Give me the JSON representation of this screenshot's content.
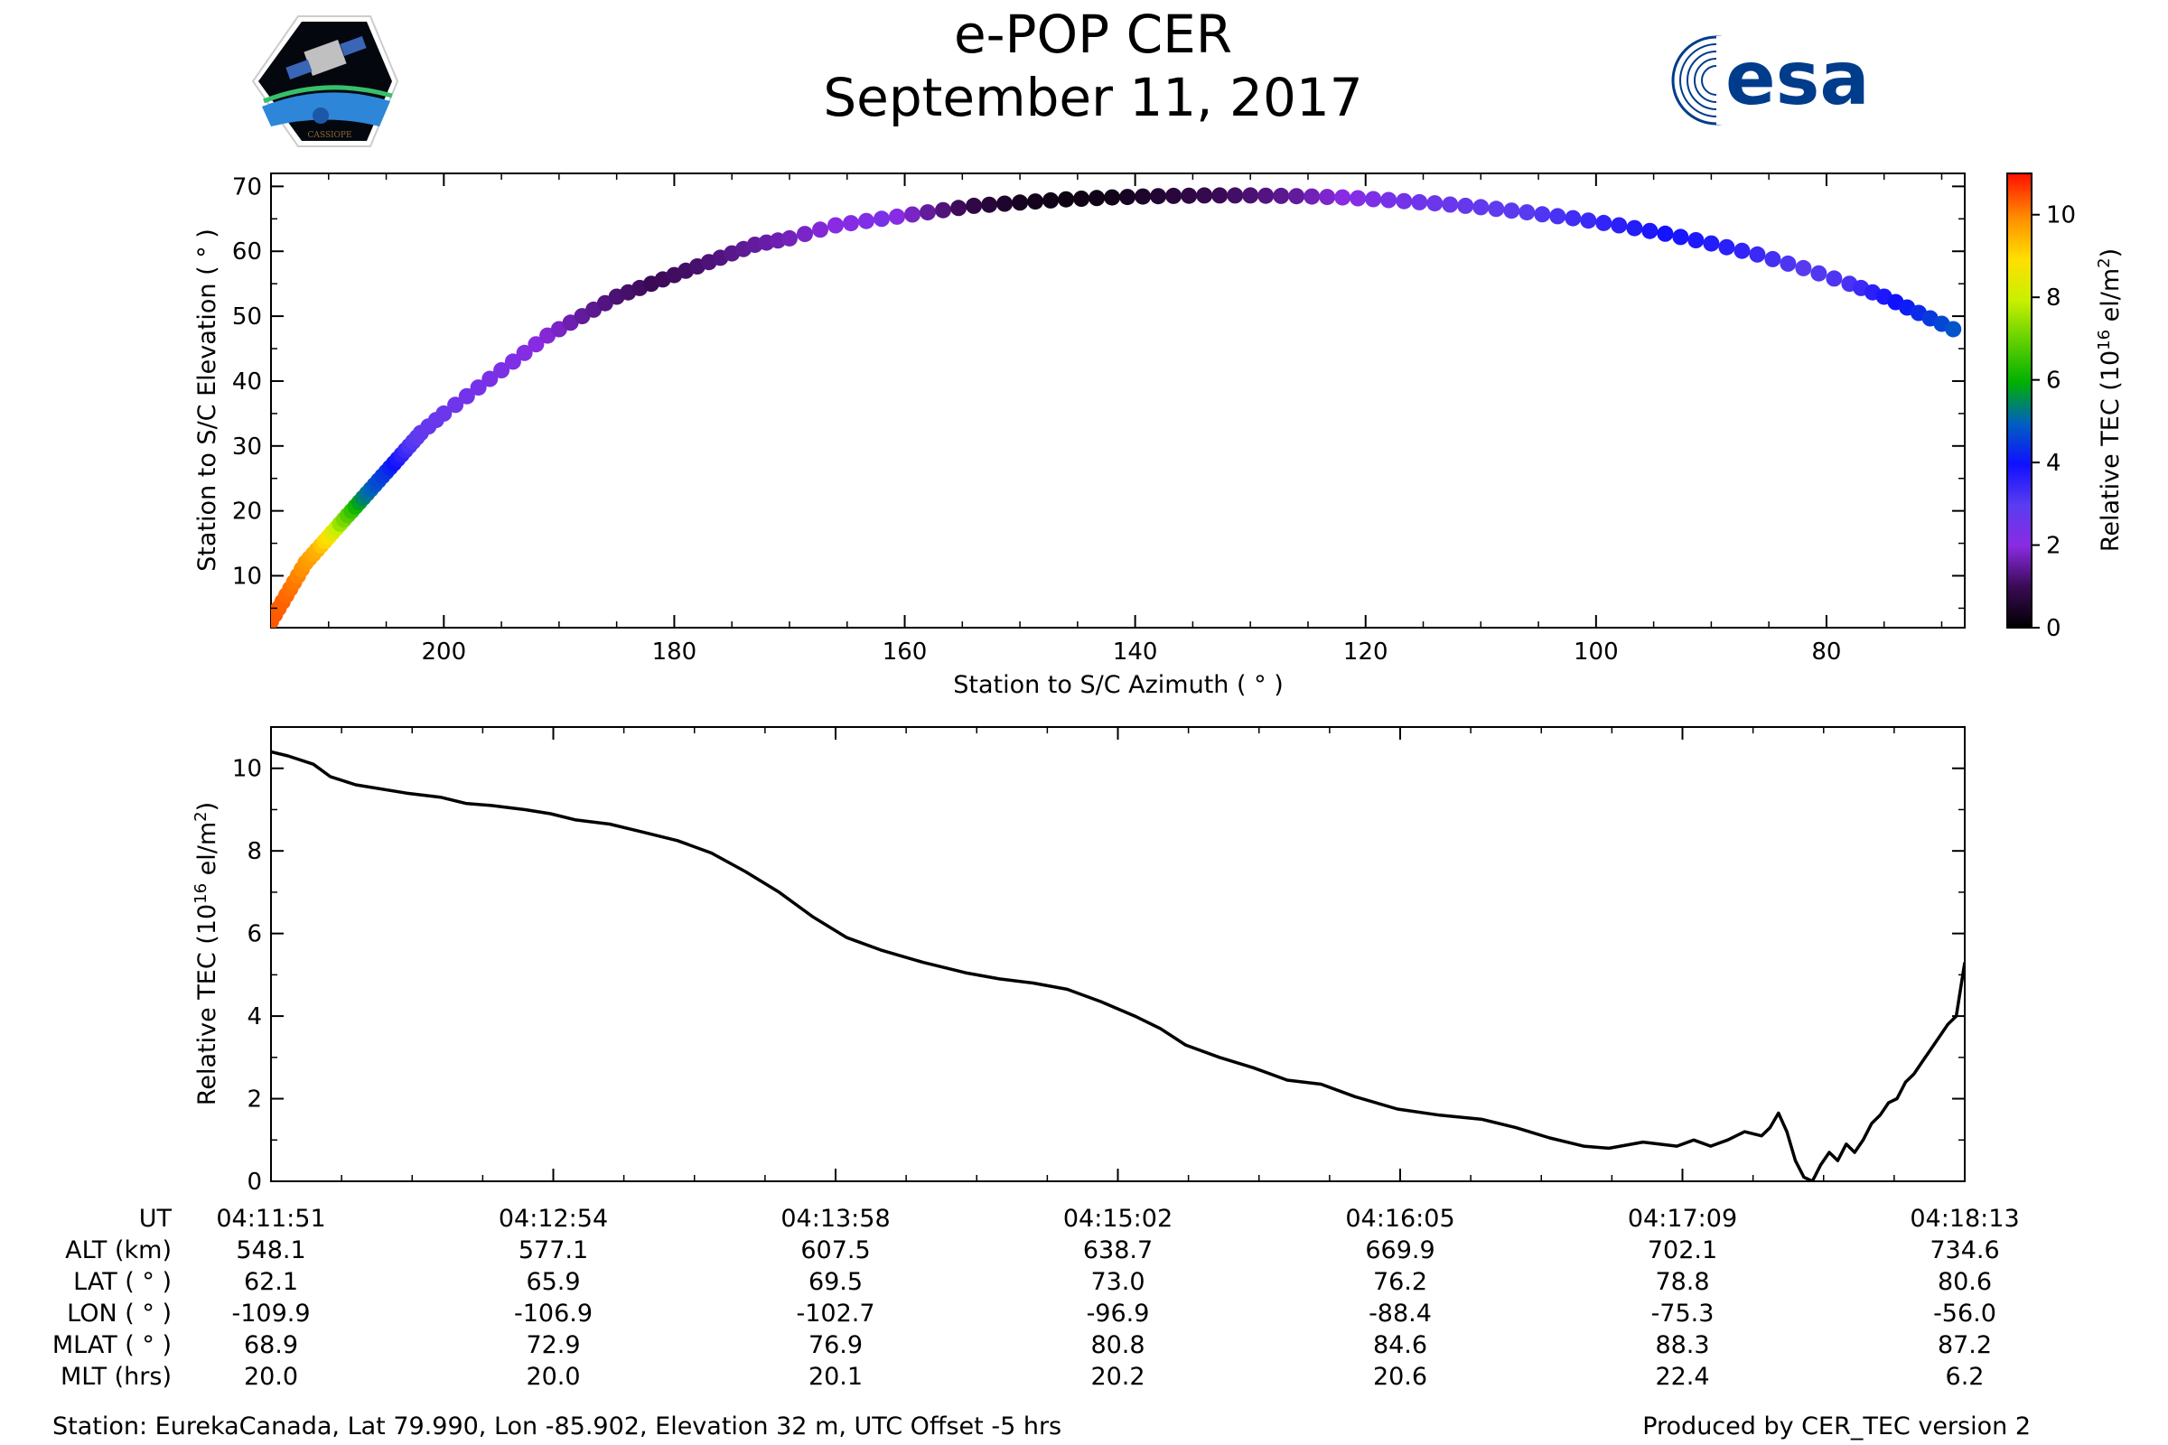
{
  "header": {
    "title": "e-POP CER",
    "date": "September 11, 2017",
    "left_logo_text": "CASSIOPE",
    "right_logo_text": "esa"
  },
  "colors": {
    "esa_blue": "#003c8c",
    "line": "#000000"
  },
  "chart_data": [
    {
      "type": "scatter",
      "title": "",
      "xlabel": "Station to S/C Azimuth ( ° )",
      "ylabel": "Station to S/C Elevation ( ° )",
      "xlim": [
        215,
        68
      ],
      "ylim": [
        2,
        72
      ],
      "xticks": [
        200,
        180,
        160,
        140,
        120,
        100,
        80
      ],
      "yticks": [
        10,
        20,
        30,
        40,
        50,
        60,
        70
      ],
      "points": [
        [
          215,
          3,
          10.4
        ],
        [
          214,
          6,
          10.3
        ],
        [
          213,
          9,
          10.1
        ],
        [
          212,
          12,
          9.8
        ],
        [
          211,
          14,
          9.5
        ],
        [
          210,
          16,
          8.8
        ],
        [
          209,
          18,
          7.5
        ],
        [
          208,
          20,
          6.5
        ],
        [
          207,
          22,
          5.4
        ],
        [
          206,
          24,
          4.8
        ],
        [
          205,
          26,
          4.4
        ],
        [
          204,
          28,
          3.8
        ],
        [
          203,
          30,
          3.2
        ],
        [
          202,
          32,
          2.8
        ],
        [
          200,
          35,
          2.6
        ],
        [
          197,
          39,
          2.4
        ],
        [
          194,
          43,
          2.2
        ],
        [
          191,
          47,
          1.9
        ],
        [
          188,
          50,
          1.5
        ],
        [
          185,
          53,
          1.2
        ],
        [
          182,
          55,
          1.0
        ],
        [
          179,
          57,
          1.1
        ],
        [
          176,
          59,
          1.3
        ],
        [
          173,
          61,
          1.5
        ],
        [
          170,
          62,
          1.7
        ],
        [
          166,
          64,
          2.0
        ],
        [
          162,
          65,
          2.3
        ],
        [
          158,
          66,
          1.5
        ],
        [
          154,
          67,
          0.8
        ],
        [
          150,
          67.5,
          0.4
        ],
        [
          146,
          68,
          0.2
        ],
        [
          142,
          68.3,
          0.3
        ],
        [
          138,
          68.5,
          0.6
        ],
        [
          134,
          68.6,
          0.9
        ],
        [
          130,
          68.6,
          1.2
        ],
        [
          126,
          68.5,
          1.5
        ],
        [
          122,
          68.3,
          2.0
        ],
        [
          118,
          67.9,
          2.4
        ],
        [
          114,
          67.4,
          2.6
        ],
        [
          110,
          66.8,
          2.8
        ],
        [
          106,
          66.0,
          3.0
        ],
        [
          102,
          65.1,
          3.3
        ],
        [
          98,
          64.0,
          3.6
        ],
        [
          94,
          62.7,
          3.9
        ],
        [
          90,
          61.2,
          3.7
        ],
        [
          86,
          59.5,
          3.4
        ],
        [
          82,
          57.4,
          3.0
        ],
        [
          78,
          55.0,
          3.2
        ],
        [
          75,
          53.0,
          3.8
        ],
        [
          72,
          50.5,
          4.3
        ],
        [
          69,
          48,
          4.8
        ]
      ],
      "colorbar": {
        "label": "Relative TEC (10^16 el/m^2)",
        "label_main": "Relative TEC (10",
        "label_exp": "16",
        "label_unit": " el/m",
        "label_exp2": "2",
        "label_close": ")",
        "range": [
          0,
          11
        ],
        "ticks": [
          0,
          2,
          4,
          6,
          8,
          10
        ],
        "colormap": "gnuplot-like (black-purple-blue-green-yellow-orange-red)"
      }
    },
    {
      "type": "line",
      "title": "",
      "xlabel": "",
      "ylabel": "Relative TEC (10^16 el/m^2)",
      "xlim": [
        0,
        1
      ],
      "ylim": [
        0,
        11
      ],
      "yticks": [
        0,
        2,
        4,
        6,
        8,
        10
      ],
      "x_tick_labels": [
        "04:11:51",
        "04:12:54",
        "04:13:58",
        "04:15:02",
        "04:16:05",
        "04:17:09",
        "04:18:13"
      ],
      "series": [
        {
          "name": "Relative TEC",
          "points": [
            [
              0.0,
              10.4
            ],
            [
              0.01,
              10.3
            ],
            [
              0.025,
              10.1
            ],
            [
              0.035,
              9.8
            ],
            [
              0.05,
              9.6
            ],
            [
              0.08,
              9.4
            ],
            [
              0.1,
              9.3
            ],
            [
              0.115,
              9.15
            ],
            [
              0.13,
              9.1
            ],
            [
              0.15,
              9.0
            ],
            [
              0.165,
              8.9
            ],
            [
              0.18,
              8.75
            ],
            [
              0.2,
              8.65
            ],
            [
              0.22,
              8.45
            ],
            [
              0.24,
              8.25
            ],
            [
              0.26,
              7.95
            ],
            [
              0.28,
              7.5
            ],
            [
              0.3,
              7.0
            ],
            [
              0.32,
              6.4
            ],
            [
              0.34,
              5.9
            ],
            [
              0.36,
              5.6
            ],
            [
              0.385,
              5.3
            ],
            [
              0.41,
              5.05
            ],
            [
              0.43,
              4.9
            ],
            [
              0.45,
              4.8
            ],
            [
              0.47,
              4.65
            ],
            [
              0.49,
              4.35
            ],
            [
              0.51,
              4.0
            ],
            [
              0.525,
              3.7
            ],
            [
              0.54,
              3.3
            ],
            [
              0.56,
              3.0
            ],
            [
              0.58,
              2.75
            ],
            [
              0.6,
              2.45
            ],
            [
              0.62,
              2.35
            ],
            [
              0.64,
              2.05
            ],
            [
              0.665,
              1.75
            ],
            [
              0.69,
              1.6
            ],
            [
              0.715,
              1.5
            ],
            [
              0.735,
              1.3
            ],
            [
              0.755,
              1.05
            ],
            [
              0.775,
              0.85
            ],
            [
              0.79,
              0.8
            ],
            [
              0.81,
              0.95
            ],
            [
              0.83,
              0.85
            ],
            [
              0.84,
              1.0
            ],
            [
              0.85,
              0.85
            ],
            [
              0.86,
              1.0
            ],
            [
              0.87,
              1.2
            ],
            [
              0.88,
              1.1
            ],
            [
              0.885,
              1.3
            ],
            [
              0.89,
              1.65
            ],
            [
              0.895,
              1.2
            ],
            [
              0.9,
              0.5
            ],
            [
              0.905,
              0.1
            ],
            [
              0.91,
              0.0
            ],
            [
              0.915,
              0.4
            ],
            [
              0.92,
              0.7
            ],
            [
              0.925,
              0.5
            ],
            [
              0.93,
              0.9
            ],
            [
              0.935,
              0.7
            ],
            [
              0.94,
              1.0
            ],
            [
              0.945,
              1.4
            ],
            [
              0.95,
              1.6
            ],
            [
              0.955,
              1.9
            ],
            [
              0.96,
              2.0
            ],
            [
              0.965,
              2.4
            ],
            [
              0.97,
              2.6
            ],
            [
              0.975,
              2.9
            ],
            [
              0.98,
              3.2
            ],
            [
              0.985,
              3.5
            ],
            [
              0.99,
              3.8
            ],
            [
              0.995,
              4.0
            ],
            [
              1.0,
              5.3
            ]
          ]
        }
      ]
    }
  ],
  "table": {
    "rows": [
      {
        "label": "UT",
        "values": [
          "04:11:51",
          "04:12:54",
          "04:13:58",
          "04:15:02",
          "04:16:05",
          "04:17:09",
          "04:18:13"
        ]
      },
      {
        "label": "ALT (km)",
        "values": [
          "548.1",
          "577.1",
          "607.5",
          "638.7",
          "669.9",
          "702.1",
          "734.6"
        ]
      },
      {
        "label": "LAT ( ° )",
        "values": [
          "62.1",
          "65.9",
          "69.5",
          "73.0",
          "76.2",
          "78.8",
          "80.6"
        ]
      },
      {
        "label": "LON ( ° )",
        "values": [
          "-109.9",
          "-106.9",
          "-102.7",
          "-96.9",
          "-88.4",
          "-75.3",
          "-56.0"
        ]
      },
      {
        "label": "MLAT ( ° )",
        "values": [
          "68.9",
          "72.9",
          "76.9",
          "80.8",
          "84.6",
          "88.3",
          "87.2"
        ]
      },
      {
        "label": "MLT (hrs)",
        "values": [
          "20.0",
          "20.0",
          "20.1",
          "20.2",
          "20.6",
          "22.4",
          "6.2"
        ]
      }
    ]
  },
  "footer": {
    "station": "Station: EurekaCanada, Lat 79.990, Lon -85.902, Elevation 32 m, UTC Offset -5 hrs",
    "produced_by": "Produced by CER_TEC version 2"
  }
}
